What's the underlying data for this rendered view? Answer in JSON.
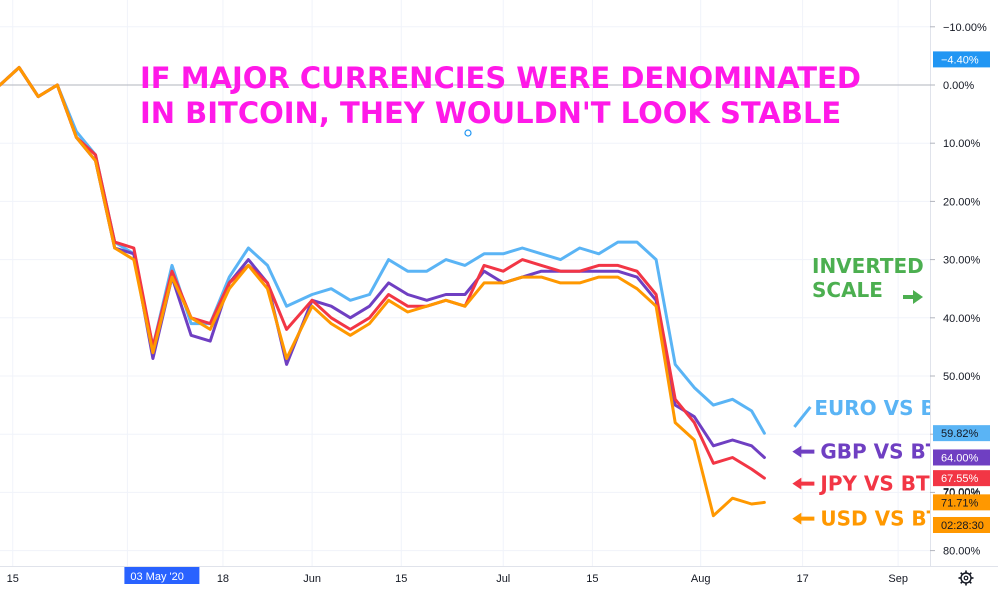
{
  "chart_data": {
    "type": "line",
    "title": "IF MAJOR CURRENCIES WERE DENOMINATED IN BITCOIN, THEY WOULDN'T LOOK STABLE",
    "title_lines": [
      "IF MAJOR CURRENCIES WERE DENOMINATED",
      "IN BITCOIN, THEY WOULDN'T LOOK STABLE"
    ],
    "scale_note_lines": [
      "INVERTED",
      "SCALE"
    ],
    "y_axis": {
      "inverted": true,
      "ylim": [
        -12,
        82
      ],
      "ticks": [
        -10,
        0,
        10,
        20,
        30,
        40,
        50,
        60,
        70,
        80
      ],
      "tick_labels": [
        "−10.00%",
        "0.00%",
        "10.00%",
        "20.00%",
        "30.00%",
        "40.00%",
        "50.00%",
        "60.00%",
        "70.00%",
        "80.00%"
      ]
    },
    "x_axis": {
      "ticks": [
        "2020-04-15",
        "2020-05-03",
        "2020-05-18",
        "2020-06-01",
        "2020-06-15",
        "2020-07-01",
        "2020-07-15",
        "2020-08-01",
        "2020-08-17",
        "2020-09-01"
      ],
      "tick_labels": [
        "15",
        "03 May '20",
        "18",
        "Jun",
        "15",
        "Jul",
        "15",
        "Aug",
        "17",
        "Sep"
      ],
      "highlighted_label": "03 May '20",
      "xlim": [
        "2020-04-13",
        "2020-09-06"
      ]
    },
    "price_tags": [
      {
        "label": "−4.40%",
        "value": -4.4,
        "color": "#2196f3"
      },
      {
        "label": "59.82%",
        "value": 59.82,
        "color": "#5ab4f5",
        "text_color": "#131722"
      },
      {
        "label": "64.00%",
        "value": 64.0,
        "color": "#6f3fc2"
      },
      {
        "label": "67.55%",
        "value": 67.55,
        "color": "#f23645"
      },
      {
        "label": "71.71%",
        "value": 71.71,
        "color": "#ff9800",
        "text_color": "#131722"
      },
      {
        "label": "02:28:30",
        "value": 75.6,
        "color": "#ff9800",
        "text_color": "#131722"
      }
    ],
    "hidden_tick_label": "70.00%",
    "series": [
      {
        "name": "EURO VS BTC",
        "color": "#5ab4f5",
        "label_value": 56,
        "x": [
          "2020-04-13",
          "2020-04-16",
          "2020-04-19",
          "2020-04-22",
          "2020-04-25",
          "2020-04-28",
          "2020-05-01",
          "2020-05-04",
          "2020-05-07",
          "2020-05-10",
          "2020-05-13",
          "2020-05-16",
          "2020-05-19",
          "2020-05-22",
          "2020-05-25",
          "2020-05-28",
          "2020-06-01",
          "2020-06-04",
          "2020-06-07",
          "2020-06-10",
          "2020-06-13",
          "2020-06-16",
          "2020-06-19",
          "2020-06-22",
          "2020-06-25",
          "2020-06-28",
          "2020-07-01",
          "2020-07-04",
          "2020-07-07",
          "2020-07-10",
          "2020-07-13",
          "2020-07-16",
          "2020-07-19",
          "2020-07-22",
          "2020-07-25",
          "2020-07-28",
          "2020-07-31",
          "2020-08-03",
          "2020-08-06",
          "2020-08-09",
          "2020-08-11"
        ],
        "values": [
          0,
          -3,
          2,
          0,
          8,
          12,
          27,
          29,
          45,
          31,
          41,
          41,
          33,
          28,
          31,
          38,
          36,
          35,
          37,
          36,
          30,
          32,
          32,
          30,
          31,
          29,
          29,
          28,
          29,
          30,
          28,
          29,
          27,
          27,
          30,
          48,
          52,
          55,
          54,
          56,
          59.82
        ]
      },
      {
        "name": "GBP VS BTC",
        "color": "#6f3fc2",
        "label_value": 63,
        "x": [
          "2020-04-13",
          "2020-04-16",
          "2020-04-19",
          "2020-04-22",
          "2020-04-25",
          "2020-04-28",
          "2020-05-01",
          "2020-05-04",
          "2020-05-07",
          "2020-05-10",
          "2020-05-13",
          "2020-05-16",
          "2020-05-19",
          "2020-05-22",
          "2020-05-25",
          "2020-05-28",
          "2020-06-01",
          "2020-06-04",
          "2020-06-07",
          "2020-06-10",
          "2020-06-13",
          "2020-06-16",
          "2020-06-19",
          "2020-06-22",
          "2020-06-25",
          "2020-06-28",
          "2020-07-01",
          "2020-07-04",
          "2020-07-07",
          "2020-07-10",
          "2020-07-13",
          "2020-07-16",
          "2020-07-19",
          "2020-07-22",
          "2020-07-25",
          "2020-07-28",
          "2020-07-31",
          "2020-08-03",
          "2020-08-06",
          "2020-08-09",
          "2020-08-11"
        ],
        "values": [
          0,
          -3,
          2,
          0,
          9,
          13,
          28,
          29,
          47,
          33,
          43,
          44,
          34,
          30,
          34,
          48,
          37,
          38,
          40,
          38,
          34,
          36,
          37,
          36,
          36,
          32,
          34,
          33,
          32,
          32,
          32,
          32,
          32,
          33,
          37,
          55,
          57,
          62,
          61,
          62,
          64.0
        ]
      },
      {
        "name": "JPY VS BTC",
        "color": "#f23645",
        "label_value": 68.5,
        "x": [
          "2020-04-13",
          "2020-04-16",
          "2020-04-19",
          "2020-04-22",
          "2020-04-25",
          "2020-04-28",
          "2020-05-01",
          "2020-05-04",
          "2020-05-07",
          "2020-05-10",
          "2020-05-13",
          "2020-05-16",
          "2020-05-19",
          "2020-05-22",
          "2020-05-25",
          "2020-05-28",
          "2020-06-01",
          "2020-06-04",
          "2020-06-07",
          "2020-06-10",
          "2020-06-13",
          "2020-06-16",
          "2020-06-19",
          "2020-06-22",
          "2020-06-25",
          "2020-06-28",
          "2020-07-01",
          "2020-07-04",
          "2020-07-07",
          "2020-07-10",
          "2020-07-13",
          "2020-07-16",
          "2020-07-19",
          "2020-07-22",
          "2020-07-25",
          "2020-07-28",
          "2020-07-31",
          "2020-08-03",
          "2020-08-06",
          "2020-08-09",
          "2020-08-11"
        ],
        "values": [
          0,
          -3,
          2,
          0,
          9,
          12,
          27,
          28,
          45,
          32,
          40,
          41,
          34,
          31,
          34,
          42,
          37,
          40,
          42,
          40,
          36,
          38,
          38,
          37,
          38,
          31,
          32,
          30,
          31,
          32,
          32,
          31,
          31,
          32,
          36,
          54,
          58,
          65,
          64,
          66,
          67.55
        ]
      },
      {
        "name": "USD VS BTC",
        "color": "#ff9800",
        "label_value": 74.5,
        "x": [
          "2020-04-13",
          "2020-04-16",
          "2020-04-19",
          "2020-04-22",
          "2020-04-25",
          "2020-04-28",
          "2020-05-01",
          "2020-05-04",
          "2020-05-07",
          "2020-05-10",
          "2020-05-13",
          "2020-05-16",
          "2020-05-19",
          "2020-05-22",
          "2020-05-25",
          "2020-05-28",
          "2020-06-01",
          "2020-06-04",
          "2020-06-07",
          "2020-06-10",
          "2020-06-13",
          "2020-06-16",
          "2020-06-19",
          "2020-06-22",
          "2020-06-25",
          "2020-06-28",
          "2020-07-01",
          "2020-07-04",
          "2020-07-07",
          "2020-07-10",
          "2020-07-13",
          "2020-07-16",
          "2020-07-19",
          "2020-07-22",
          "2020-07-25",
          "2020-07-28",
          "2020-07-31",
          "2020-08-03",
          "2020-08-06",
          "2020-08-09",
          "2020-08-11"
        ],
        "values": [
          0,
          -3,
          2,
          0,
          9,
          13,
          28,
          30,
          46,
          33,
          40,
          42,
          35,
          31,
          35,
          47,
          38,
          41,
          43,
          41,
          37,
          39,
          38,
          37,
          38,
          34,
          34,
          33,
          33,
          34,
          34,
          33,
          33,
          35,
          38,
          58,
          61,
          74,
          71,
          72,
          71.71
        ]
      }
    ]
  }
}
